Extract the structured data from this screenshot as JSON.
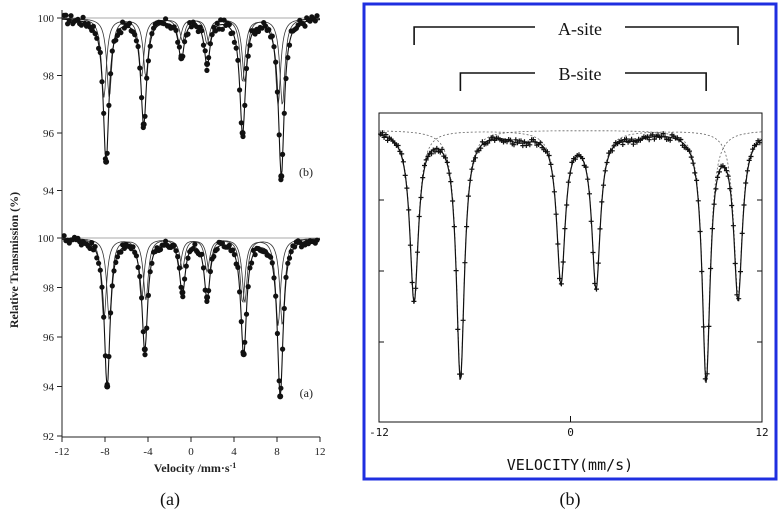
{
  "captions": {
    "a": "(a)",
    "b": "(b)"
  },
  "colors": {
    "frame": "#1f2fe0",
    "data": "#111111",
    "fit": "#333333"
  },
  "chart_data": [
    {
      "type": "scatter",
      "panel": "a",
      "ylabel": "Relative Transmission (%)",
      "xlabel": "Velocity /mm·s",
      "xlabel_superscript": "-1",
      "xlim": [
        -12,
        12
      ],
      "x_ticks": [
        "-12",
        "-8",
        "-4",
        "0",
        "4",
        "8",
        "12"
      ],
      "y_ticks_top": [
        "100",
        "98",
        "96",
        "94"
      ],
      "y_ticks_bottom": [
        "100",
        "98",
        "96",
        "94",
        "92"
      ],
      "subplots": [
        {
          "label": "(b)",
          "ylim": [
            94,
            100
          ],
          "x": [
            -7.9,
            -4.4,
            -0.9,
            1.5,
            4.8,
            8.4
          ],
          "y": [
            95.0,
            96.3,
            98.6,
            98.4,
            96.0,
            94.5
          ],
          "subspectra": [
            {
              "lines": [
                -8.1,
                -4.6,
                -1.1,
                1.5,
                5.0,
                8.5
              ]
            },
            {
              "lines": [
                -7.6,
                -4.2,
                -0.8,
                1.7,
                4.8,
                8.1
              ]
            }
          ]
        },
        {
          "label": "(a)",
          "ylim": [
            92,
            100
          ],
          "x": [
            -7.8,
            -4.3,
            -0.8,
            1.5,
            4.9,
            8.3
          ],
          "y": [
            94.0,
            95.5,
            97.8,
            97.6,
            95.3,
            93.6
          ],
          "subspectra": [
            {
              "lines": [
                -8.1,
                -4.6,
                -1.1,
                1.5,
                5.0,
                8.5
              ]
            },
            {
              "lines": [
                -7.6,
                -4.2,
                -0.8,
                1.7,
                4.8,
                8.1
              ]
            }
          ]
        }
      ]
    },
    {
      "type": "line",
      "panel": "b",
      "xlabel": "VELOCITY(mm/s)",
      "xlim": [
        -12,
        12
      ],
      "x_ticks": [
        "-12",
        "0",
        "12"
      ],
      "annotations": [
        {
          "text": "A-site",
          "span": [
            -9.8,
            10.5
          ]
        },
        {
          "text": "B-site",
          "span": [
            -6.9,
            8.5
          ]
        }
      ],
      "subspectra": [
        {
          "name": "A-site",
          "lines": [
            -9.8,
            -0.6,
            1.6,
            10.5
          ]
        },
        {
          "name": "B-site",
          "lines": [
            -6.9,
            8.5
          ]
        }
      ]
    }
  ]
}
